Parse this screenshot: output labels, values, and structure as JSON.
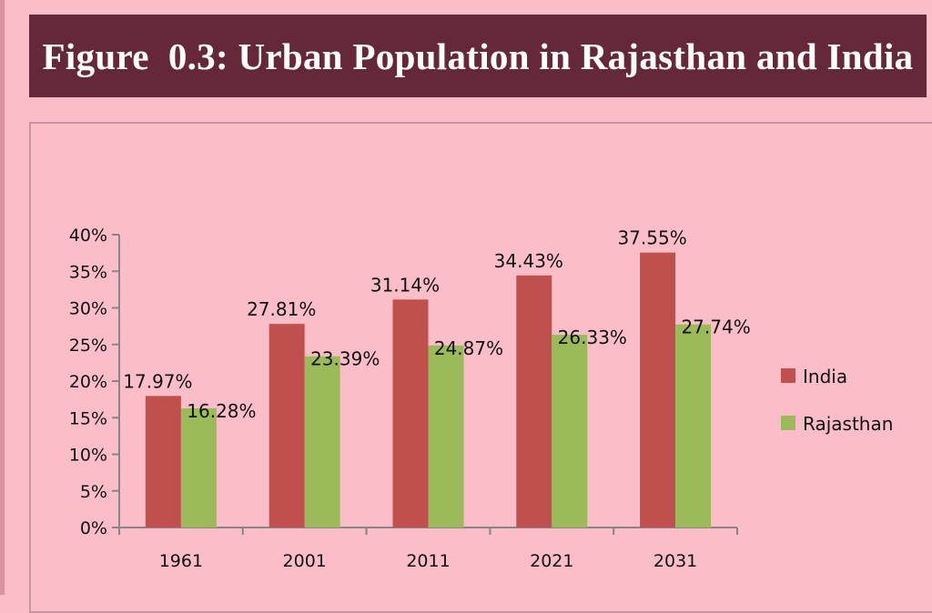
{
  "chart_data": {
    "type": "bar",
    "title": "Figure  0.3: Urban Population in Rajasthan and India",
    "categories": [
      "1961",
      "2001",
      "2011",
      "2021",
      "2031"
    ],
    "series": [
      {
        "name": "India",
        "color": "#c0504d",
        "values": [
          17.97,
          27.81,
          31.14,
          34.43,
          37.55
        ],
        "labels": [
          "17.97%",
          "27.81%",
          "31.14%",
          "34.43%",
          "37.55%"
        ]
      },
      {
        "name": "Rajasthan",
        "color": "#9bbb59",
        "values": [
          16.28,
          23.39,
          24.87,
          26.33,
          27.74
        ],
        "labels": [
          "16.28%",
          "23.39%",
          "24.87%",
          "26.33%",
          "27.74%"
        ]
      }
    ],
    "yticks": [
      "0%",
      "5%",
      "10%",
      "15%",
      "20%",
      "25%",
      "30%",
      "35%",
      "40%"
    ],
    "ylim": [
      0,
      40
    ],
    "xlabel": "",
    "ylabel": "",
    "grid": false,
    "legend_position": "right"
  }
}
